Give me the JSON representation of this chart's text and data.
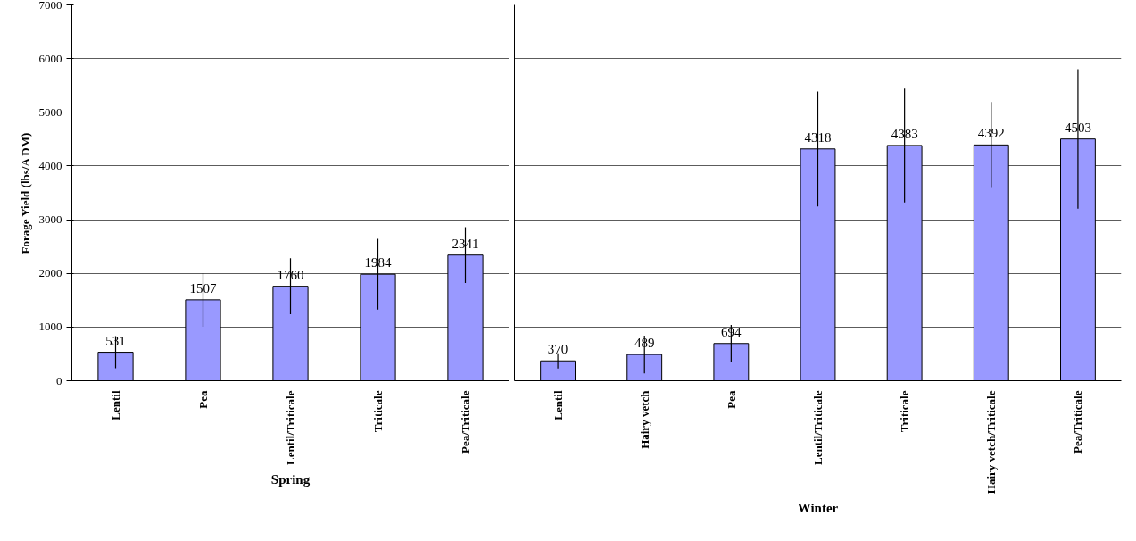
{
  "chart_data": [
    {
      "type": "bar",
      "ylabel": "Forage Yield (lbs/A DM)",
      "xlabel": "Spring",
      "categories": [
        "Lentil",
        "Pea",
        "Lentil/Triticale",
        "Triticale",
        "Pea/Triticale"
      ],
      "values": [
        531,
        1507,
        1760,
        1984,
        2341
      ],
      "errors": [
        300,
        500,
        520,
        660,
        520
      ],
      "color": "#9999ff",
      "data_labels": true,
      "ylim": [
        0,
        7000
      ],
      "yticks": [
        0,
        1000,
        2000,
        3000,
        4000,
        5000,
        6000,
        7000
      ],
      "grid": "y"
    },
    {
      "type": "bar",
      "xlabel": "Winter",
      "categories": [
        "Lentil",
        "Hairy vetch",
        "Pea",
        "Lentil/Triticale",
        "Triticale",
        "Hairy vetch/Triticale",
        "Pea/Triticale"
      ],
      "values": [
        370,
        489,
        694,
        4318,
        4383,
        4392,
        4503
      ],
      "errors": [
        140,
        350,
        345,
        1070,
        1060,
        800,
        1300
      ],
      "color": "#9999ff",
      "data_labels": true,
      "ylim": [
        0,
        7000
      ],
      "yticks": [
        0,
        1000,
        2000,
        3000,
        4000,
        5000,
        6000,
        7000
      ],
      "grid": "y",
      "tick_labels": "x"
    }
  ]
}
